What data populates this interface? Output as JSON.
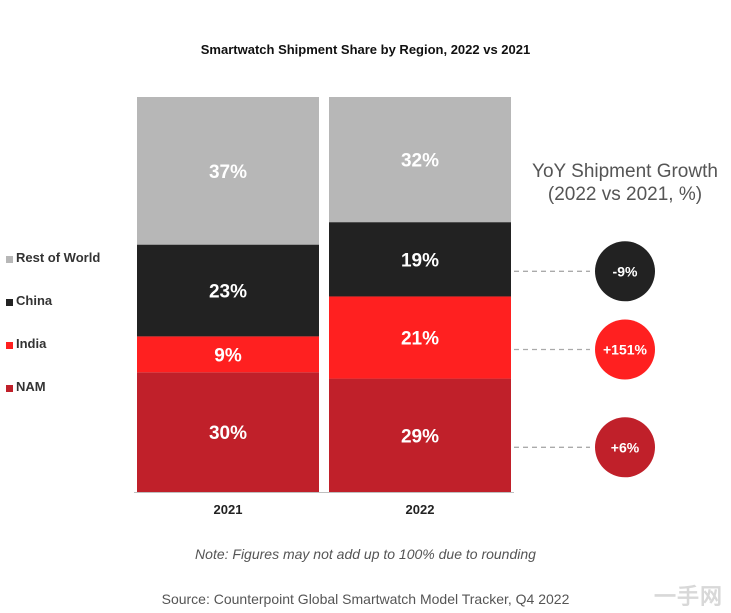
{
  "chart_data": {
    "type": "bar",
    "stacked": true,
    "title": "Smartwatch Shipment Share by Region, 2022 vs 2021",
    "categories": [
      "2021",
      "2022"
    ],
    "series": [
      {
        "name": "NAM",
        "color": "#c0202a",
        "values": [
          30,
          29
        ],
        "labels": [
          "30%",
          "29%"
        ]
      },
      {
        "name": "India",
        "color": "#ff2020",
        "values": [
          9,
          21
        ],
        "labels": [
          "9%",
          "21%"
        ]
      },
      {
        "name": "China",
        "color": "#222222",
        "values": [
          23,
          19
        ],
        "labels": [
          "23%",
          "19%"
        ]
      },
      {
        "name": "Rest of World",
        "color": "#b7b7b7",
        "values": [
          37,
          32
        ],
        "labels": [
          "37%",
          "32%"
        ]
      }
    ],
    "legend_order": [
      "Rest of World",
      "China",
      "India",
      "NAM"
    ],
    "legend_position": "left",
    "ylim": [
      0,
      100
    ],
    "yoy": {
      "title_line1": "YoY Shipment Growth",
      "title_line2": "(2022 vs 2021, %)",
      "items": [
        {
          "series": "China",
          "label": "-9%",
          "color": "#222222"
        },
        {
          "series": "India",
          "label": "+151%",
          "color": "#ff2020"
        },
        {
          "series": "NAM",
          "label": "+6%",
          "color": "#c0202a"
        }
      ]
    }
  },
  "note": "Note: Figures may not add up to 100% due to rounding",
  "source": "Source: Counterpoint Global Smartwatch Model Tracker, Q4 2022",
  "watermark": "一手网"
}
